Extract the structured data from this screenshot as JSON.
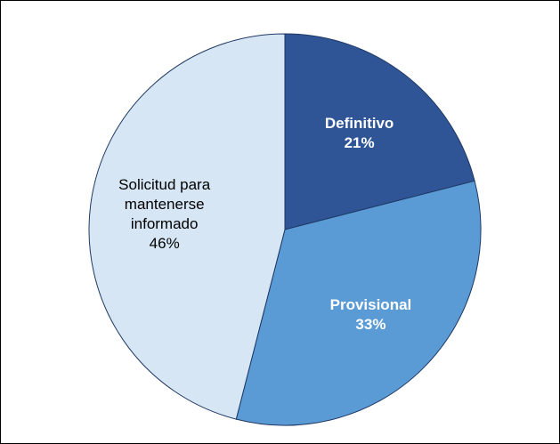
{
  "chart_data": {
    "type": "pie",
    "categories": [
      "Definitivo",
      "Provisional",
      "Solicitud para mantenerse informado"
    ],
    "values": [
      21,
      33,
      46
    ],
    "value_labels": [
      "21%",
      "33%",
      "46%"
    ],
    "colors": [
      "#2f5597",
      "#5b9bd5",
      "#d6e6f4"
    ],
    "start_angle": 0,
    "direction": "clockwise"
  }
}
